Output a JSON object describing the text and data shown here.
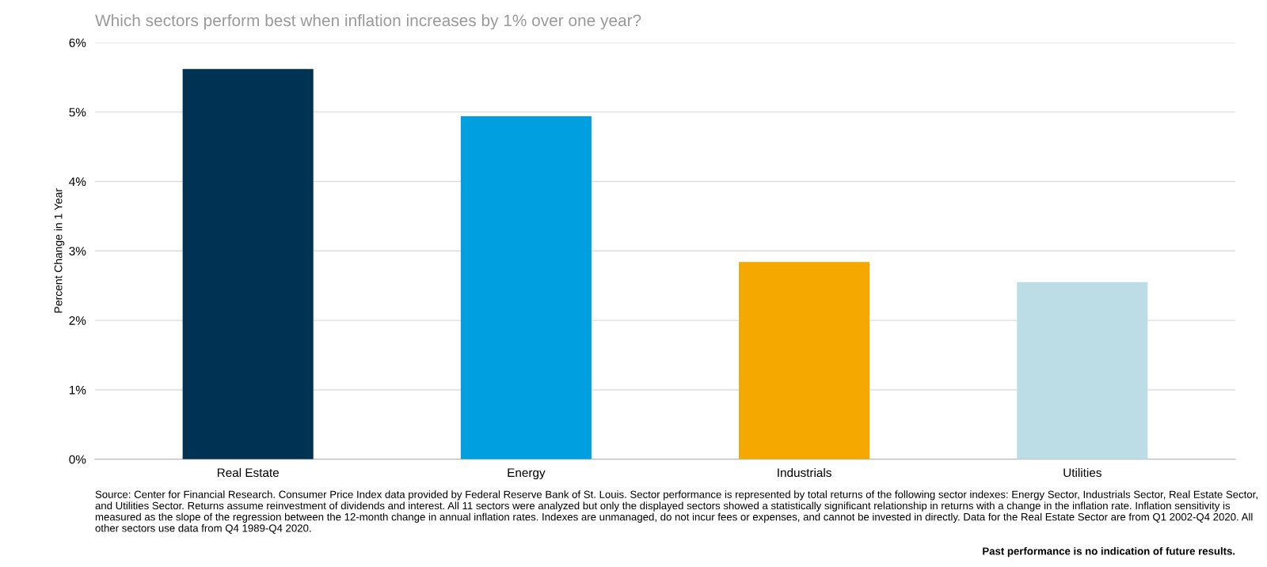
{
  "chart_data": {
    "type": "bar",
    "title": "Which sectors perform best when inflation increases by 1% over one year?",
    "ylabel": "Percent Change in 1 Year",
    "categories": [
      "Real Estate",
      "Energy",
      "Industrials",
      "Utilities"
    ],
    "values": [
      5.62,
      4.94,
      2.84,
      2.55
    ],
    "colors": [
      "#003353",
      "#009fdf",
      "#f4a800",
      "#bcdde5"
    ],
    "ylim": [
      0,
      6
    ],
    "yticks": [
      {
        "value": 0,
        "label": "0%"
      },
      {
        "value": 1,
        "label": "1%"
      },
      {
        "value": 2,
        "label": "2%"
      },
      {
        "value": 3,
        "label": "3%"
      },
      {
        "value": 4,
        "label": "4%"
      },
      {
        "value": 5,
        "label": "5%"
      },
      {
        "value": 6,
        "label": "6%"
      }
    ],
    "grid": "y",
    "annotations": [
      "Source: Center for Financial Research. Consumer Price Index data provided by Federal Reserve Bank of St. Louis. Sector performance is represented by total returns of the following sector indexes: Energy Sector, Industrials Sector, Real Estate Sector, and Utilities Sector. Returns assume reinvestment of dividends and interest. All 11 sectors were analyzed but only the displayed sectors showed a statistically significant relationship in returns with a change in the inflation rate. Inflation sensitivity is measured as the slope of the regression between the 12-month change in annual inflation rates. Indexes are unmanaged, do not incur fees or expenses, and cannot be invested in directly. Data for the Real Estate Sector are from Q1 2002-Q4 2020. All other sectors use data from Q4 1989-Q4 2020.",
      "Past performance is no indication of future results."
    ]
  }
}
